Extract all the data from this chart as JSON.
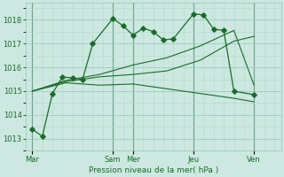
{
  "background_color": "#cce8e0",
  "grid_color_major": "#8fc8b8",
  "grid_color_minor": "#b0d8cc",
  "line_color": "#1a6b2a",
  "title": "Pression niveau de la mer( hPa )",
  "ylim": [
    1012.5,
    1018.7
  ],
  "yticks": [
    1013,
    1014,
    1015,
    1016,
    1017,
    1018
  ],
  "day_labels": [
    "Mar",
    "Sam",
    "Mer",
    "Jeu",
    "Ven"
  ],
  "day_positions": [
    0,
    48,
    60,
    96,
    132
  ],
  "xlim": [
    -4,
    148
  ],
  "series_main": {
    "x": [
      0,
      6,
      12,
      18,
      24,
      30,
      36,
      48,
      54,
      60,
      66,
      72,
      78,
      84,
      96,
      102,
      108,
      114,
      120,
      132
    ],
    "y": [
      1013.4,
      1013.1,
      1014.9,
      1015.6,
      1015.55,
      1015.5,
      1017.0,
      1018.05,
      1017.75,
      1017.35,
      1017.65,
      1017.5,
      1017.15,
      1017.2,
      1018.25,
      1018.2,
      1017.6,
      1017.55,
      1015.0,
      1014.85
    ]
  },
  "series_extra": [
    {
      "x": [
        0,
        20,
        40,
        60,
        80,
        100,
        120,
        132
      ],
      "y": [
        1015.0,
        1015.4,
        1015.6,
        1015.7,
        1015.85,
        1016.3,
        1017.1,
        1017.3
      ]
    },
    {
      "x": [
        0,
        20,
        40,
        60,
        80,
        100,
        120,
        132
      ],
      "y": [
        1015.0,
        1015.35,
        1015.25,
        1015.3,
        1015.1,
        1014.9,
        1014.7,
        1014.55
      ]
    },
    {
      "x": [
        0,
        20,
        40,
        60,
        80,
        100,
        120,
        132
      ],
      "y": [
        1015.0,
        1015.45,
        1015.7,
        1016.1,
        1016.4,
        1016.9,
        1017.55,
        1015.25
      ]
    }
  ]
}
